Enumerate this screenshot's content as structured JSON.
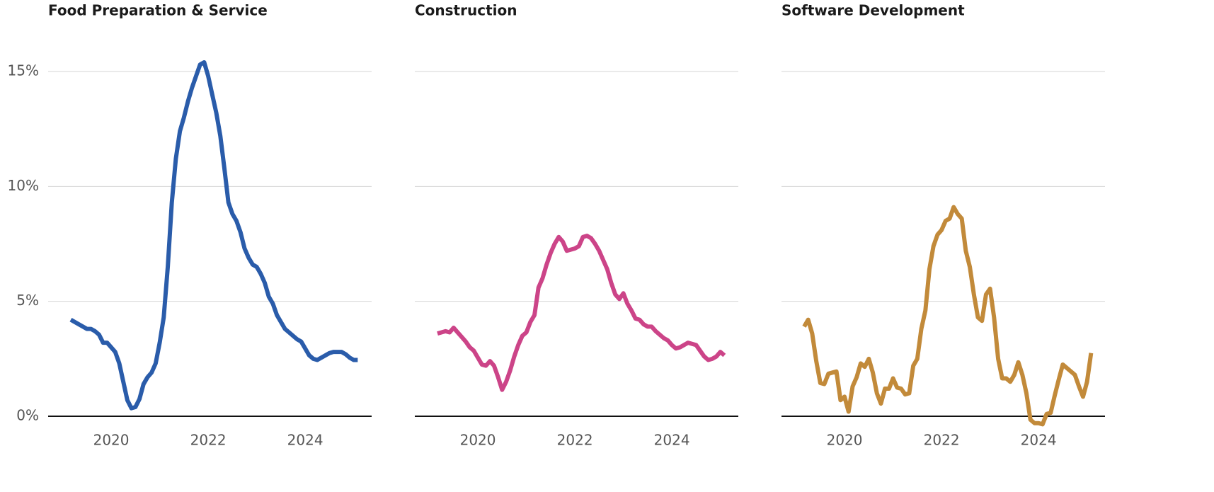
{
  "chart_data": [
    {
      "type": "line",
      "title": "Food Preparation & Service",
      "x": [
        2019.167,
        2019.25,
        2019.333,
        2019.417,
        2019.5,
        2019.583,
        2019.667,
        2019.75,
        2019.833,
        2019.917,
        2020,
        2020.083,
        2020.167,
        2020.25,
        2020.333,
        2020.417,
        2020.5,
        2020.583,
        2020.667,
        2020.75,
        2020.833,
        2020.917,
        2021,
        2021.083,
        2021.167,
        2021.25,
        2021.333,
        2021.417,
        2021.5,
        2021.583,
        2021.667,
        2021.75,
        2021.833,
        2021.917,
        2022,
        2022.083,
        2022.167,
        2022.25,
        2022.333,
        2022.417,
        2022.5,
        2022.583,
        2022.667,
        2022.75,
        2022.833,
        2022.917,
        2023,
        2023.083,
        2023.167,
        2023.25,
        2023.333,
        2023.417,
        2023.5,
        2023.583,
        2023.667,
        2023.75,
        2023.833,
        2023.917,
        2024,
        2024.083,
        2024.167,
        2024.25,
        2024.333,
        2024.417,
        2024.5,
        2024.583,
        2024.667,
        2024.75,
        2024.833,
        2024.917,
        2025,
        2025.083
      ],
      "series": [
        {
          "name": "Food Preparation & Service",
          "color": "#2a5caa",
          "values": [
            4.2,
            4.1,
            4.0,
            3.9,
            3.8,
            3.8,
            3.7,
            3.55,
            3.2,
            3.2,
            3.0,
            2.8,
            2.3,
            1.5,
            0.7,
            0.35,
            0.4,
            0.75,
            1.4,
            1.7,
            1.9,
            2.3,
            3.2,
            4.3,
            6.5,
            9.3,
            11.2,
            12.4,
            13.0,
            13.7,
            14.3,
            14.8,
            15.3,
            15.4,
            14.8,
            14.0,
            13.2,
            12.2,
            10.8,
            9.3,
            8.8,
            8.5,
            8.0,
            7.3,
            6.9,
            6.6,
            6.5,
            6.2,
            5.8,
            5.2,
            4.9,
            4.4,
            4.1,
            3.8,
            3.65,
            3.5,
            3.35,
            3.25,
            2.95,
            2.65,
            2.5,
            2.45,
            2.55,
            2.65,
            2.75,
            2.8,
            2.8,
            2.8,
            2.7,
            2.55,
            2.45,
            2.45
          ]
        }
      ],
      "xlim": [
        2018.7,
        2025.37
      ],
      "xticks": [
        2020,
        2022,
        2024
      ],
      "ylim": [
        -0.4,
        16
      ],
      "yticks": [
        {
          "value": 0,
          "label": "0%"
        },
        {
          "value": 5,
          "label": "5%"
        },
        {
          "value": 10,
          "label": "10%"
        },
        {
          "value": 15,
          "label": "15%"
        }
      ],
      "grid": true
    },
    {
      "type": "line",
      "title": "Construction",
      "x": [
        2019.167,
        2019.25,
        2019.333,
        2019.417,
        2019.5,
        2019.583,
        2019.667,
        2019.75,
        2019.833,
        2019.917,
        2020,
        2020.083,
        2020.167,
        2020.25,
        2020.333,
        2020.417,
        2020.5,
        2020.583,
        2020.667,
        2020.75,
        2020.833,
        2020.917,
        2021,
        2021.083,
        2021.167,
        2021.25,
        2021.333,
        2021.417,
        2021.5,
        2021.583,
        2021.667,
        2021.75,
        2021.833,
        2021.917,
        2022,
        2022.083,
        2022.167,
        2022.25,
        2022.333,
        2022.417,
        2022.5,
        2022.583,
        2022.667,
        2022.75,
        2022.833,
        2022.917,
        2023,
        2023.083,
        2023.167,
        2023.25,
        2023.333,
        2023.417,
        2023.5,
        2023.583,
        2023.667,
        2023.75,
        2023.833,
        2023.917,
        2024,
        2024.083,
        2024.167,
        2024.25,
        2024.333,
        2024.417,
        2024.5,
        2024.583,
        2024.667,
        2024.75,
        2024.833,
        2024.917,
        2025,
        2025.083
      ],
      "series": [
        {
          "name": "Construction",
          "color": "#cc4488",
          "values": [
            3.6,
            3.65,
            3.7,
            3.65,
            3.85,
            3.65,
            3.45,
            3.25,
            3.0,
            2.85,
            2.55,
            2.25,
            2.2,
            2.4,
            2.2,
            1.7,
            1.15,
            1.5,
            2.0,
            2.6,
            3.1,
            3.5,
            3.65,
            4.1,
            4.4,
            5.6,
            6.0,
            6.6,
            7.1,
            7.5,
            7.8,
            7.6,
            7.2,
            7.25,
            7.3,
            7.4,
            7.8,
            7.85,
            7.75,
            7.5,
            7.2,
            6.8,
            6.4,
            5.8,
            5.3,
            5.1,
            5.35,
            4.9,
            4.6,
            4.25,
            4.2,
            4.0,
            3.9,
            3.9,
            3.7,
            3.55,
            3.4,
            3.3,
            3.1,
            2.95,
            3.0,
            3.1,
            3.2,
            3.15,
            3.1,
            2.85,
            2.6,
            2.45,
            2.5,
            2.6,
            2.8,
            2.65
          ]
        }
      ],
      "xlim": [
        2018.7,
        2025.37
      ],
      "xticks": [
        2020,
        2022,
        2024
      ],
      "ylim": [
        -0.4,
        16
      ],
      "yticks": [
        0,
        5,
        10,
        15
      ],
      "grid": true
    },
    {
      "type": "line",
      "title": "Software Development",
      "x": [
        2019.167,
        2019.25,
        2019.333,
        2019.417,
        2019.5,
        2019.583,
        2019.667,
        2019.75,
        2019.833,
        2019.917,
        2020,
        2020.083,
        2020.167,
        2020.25,
        2020.333,
        2020.417,
        2020.5,
        2020.583,
        2020.667,
        2020.75,
        2020.833,
        2020.917,
        2021,
        2021.083,
        2021.167,
        2021.25,
        2021.333,
        2021.417,
        2021.5,
        2021.583,
        2021.667,
        2021.75,
        2021.833,
        2021.917,
        2022,
        2022.083,
        2022.167,
        2022.25,
        2022.333,
        2022.417,
        2022.5,
        2022.583,
        2022.667,
        2022.75,
        2022.833,
        2022.917,
        2023,
        2023.083,
        2023.167,
        2023.25,
        2023.333,
        2023.417,
        2023.5,
        2023.583,
        2023.667,
        2023.75,
        2023.833,
        2023.917,
        2024,
        2024.083,
        2024.167,
        2024.25,
        2024.333,
        2024.417,
        2024.5,
        2024.583,
        2024.667,
        2024.75,
        2024.833,
        2024.917,
        2025,
        2025.083
      ],
      "series": [
        {
          "name": "Software Development",
          "color": "#c28a3a",
          "values": [
            3.9,
            4.2,
            3.6,
            2.4,
            1.45,
            1.4,
            1.85,
            1.9,
            1.95,
            0.7,
            0.85,
            0.2,
            1.3,
            1.7,
            2.3,
            2.15,
            2.5,
            1.9,
            1.0,
            0.55,
            1.2,
            1.2,
            1.65,
            1.25,
            1.2,
            0.95,
            1.0,
            2.2,
            2.5,
            3.8,
            4.6,
            6.4,
            7.4,
            7.9,
            8.1,
            8.5,
            8.6,
            9.1,
            8.8,
            8.6,
            7.2,
            6.5,
            5.3,
            4.3,
            4.15,
            5.3,
            5.55,
            4.3,
            2.5,
            1.65,
            1.65,
            1.5,
            1.8,
            2.35,
            1.8,
            1.0,
            -0.15,
            -0.3,
            -0.3,
            -0.35,
            0.1,
            0.15,
            0.9,
            1.6,
            2.25,
            2.1,
            1.95,
            1.8,
            1.3,
            0.85,
            1.5,
            2.75
          ]
        }
      ],
      "xlim": [
        2018.7,
        2025.37
      ],
      "xticks": [
        2020,
        2022,
        2024
      ],
      "ylim": [
        -0.4,
        16
      ],
      "yticks": [
        0,
        5,
        10,
        15
      ],
      "grid": true
    }
  ]
}
